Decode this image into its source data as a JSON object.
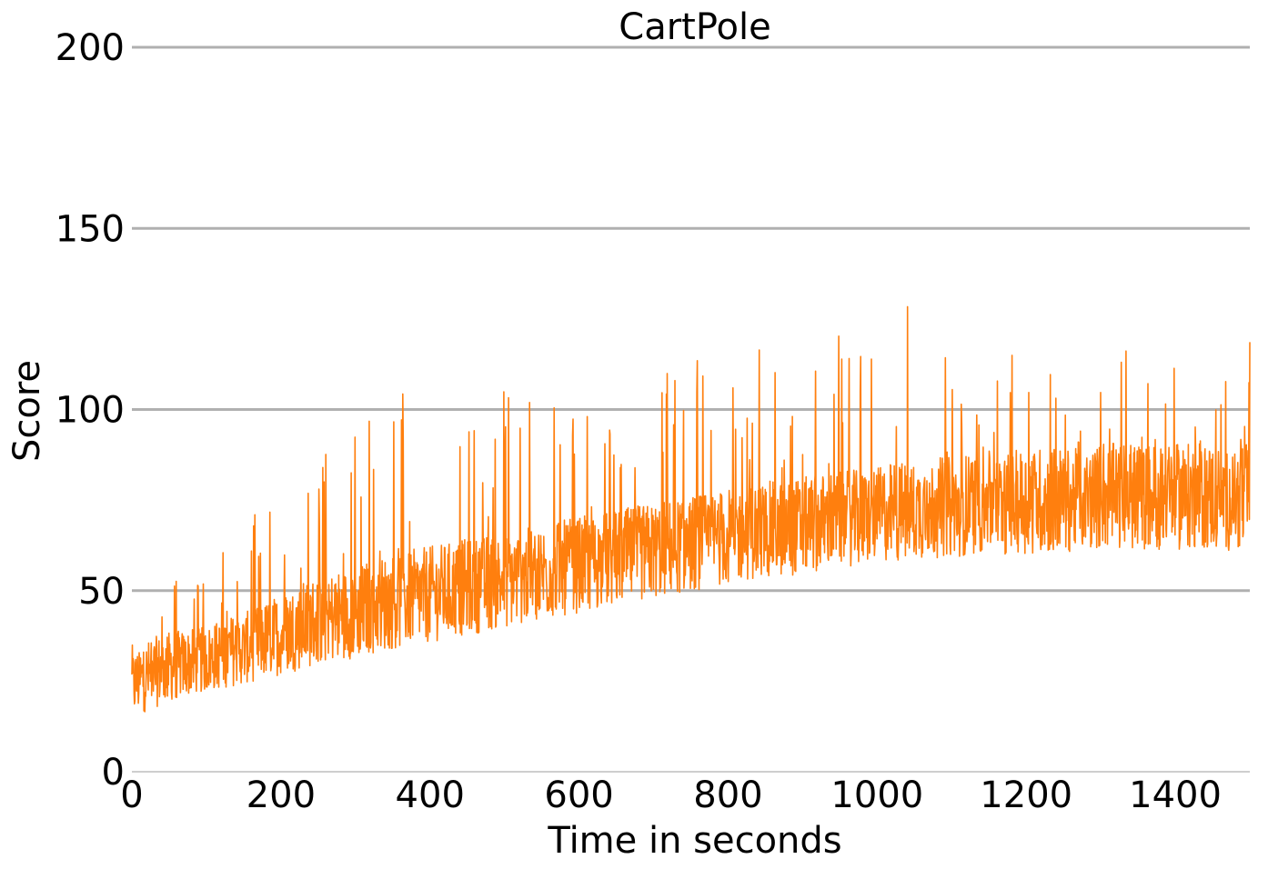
{
  "chart_data": {
    "type": "line",
    "title": "CartPole",
    "xlabel": "Time in seconds",
    "ylabel": "Score",
    "xlim": [
      0,
      1500
    ],
    "ylim": [
      0,
      200
    ],
    "x_ticks": [
      "0",
      "200",
      "400",
      "600",
      "800",
      "1000",
      "1200",
      "1400"
    ],
    "y_ticks": [
      "0",
      "50",
      "100",
      "150",
      "200"
    ],
    "grid": "horizontal",
    "legend": "none",
    "series": [
      {
        "color": "#ff7f0e",
        "x": [
          0,
          25,
          50,
          75,
          100,
          125,
          150,
          175,
          200,
          225,
          250,
          275,
          300,
          325,
          350,
          375,
          400,
          425,
          450,
          475,
          500,
          525,
          550,
          575,
          600,
          625,
          650,
          675,
          700,
          725,
          750,
          775,
          800,
          825,
          850,
          875,
          900,
          925,
          950,
          975,
          1000,
          1025,
          1050,
          1075,
          1100,
          1125,
          1150,
          1175,
          1200,
          1225,
          1250,
          1275,
          1300,
          1325,
          1350,
          1375,
          1400,
          1425,
          1450,
          1475,
          1500
        ],
        "y": [
          24,
          27,
          29,
          30,
          31,
          33,
          34,
          36,
          38,
          40,
          42,
          43,
          44,
          46,
          47,
          48,
          49,
          50,
          51,
          52,
          53,
          54,
          55,
          56,
          57,
          58,
          59,
          60,
          61,
          62,
          63,
          64,
          65,
          66,
          67,
          67,
          68,
          69,
          70,
          70,
          71,
          72,
          72,
          73,
          73,
          74,
          74,
          74,
          75,
          75,
          75,
          75,
          76,
          76,
          76,
          76,
          76,
          76,
          76,
          75,
          76
        ],
        "variability_min": [
          11,
          13,
          15,
          17,
          18,
          19,
          20,
          21,
          22,
          23,
          24,
          25,
          26,
          27,
          28,
          29,
          30,
          31,
          32,
          33,
          34,
          35,
          36,
          37,
          38,
          39,
          40,
          41,
          42,
          43,
          44,
          45,
          46,
          47,
          48,
          48,
          49,
          50,
          51,
          51,
          52,
          52,
          53,
          53,
          53,
          54,
          54,
          54,
          54,
          54,
          54,
          55,
          55,
          55,
          55,
          55,
          55,
          55,
          55,
          55,
          55
        ],
        "variability_max": [
          40,
          44,
          52,
          55,
          58,
          62,
          68,
          75,
          78,
          80,
          88,
          92,
          98,
          100,
          104,
          108,
          110,
          108,
          106,
          104,
          108,
          108,
          108,
          110,
          108,
          105,
          108,
          108,
          110,
          112,
          116,
          118,
          120,
          124,
          126,
          118,
          118,
          120,
          124,
          124,
          124,
          126,
          136,
          124,
          122,
          118,
          116,
          116,
          114,
          114,
          116,
          118,
          116,
          118,
          118,
          118,
          116,
          114,
          116,
          115,
          130
        ]
      }
    ]
  }
}
